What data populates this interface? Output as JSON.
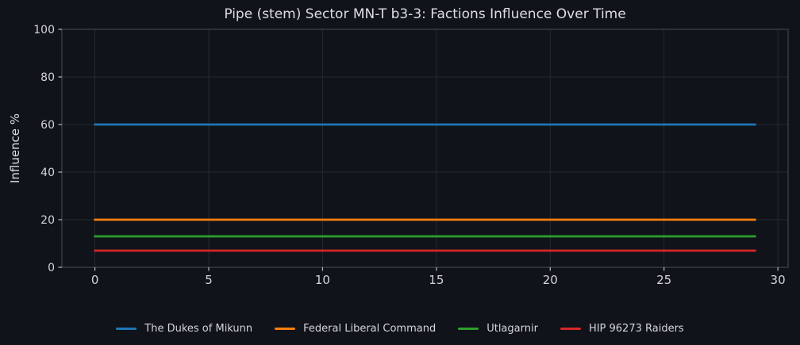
{
  "chart_data": {
    "type": "line",
    "title": "Pipe (stem) Sector MN-T b3-3: Factions Influence Over Time",
    "xlabel": "",
    "ylabel": "Influence %",
    "x": [
      0,
      1,
      2,
      3,
      4,
      5,
      6,
      7,
      8,
      9,
      10,
      11,
      12,
      13,
      14,
      15,
      16,
      17,
      18,
      19,
      20,
      21,
      22,
      23,
      24,
      25,
      26,
      27,
      28,
      29
    ],
    "series": [
      {
        "name": "The Dukes of Mikunn",
        "color": "#1f77b4",
        "values": [
          60,
          60,
          60,
          60,
          60,
          60,
          60,
          60,
          60,
          60,
          60,
          60,
          60,
          60,
          60,
          60,
          60,
          60,
          60,
          60,
          60,
          60,
          60,
          60,
          60,
          60,
          60,
          60,
          60,
          60
        ]
      },
      {
        "name": "Federal Liberal Command",
        "color": "#ff7f0e",
        "values": [
          20,
          20,
          20,
          20,
          20,
          20,
          20,
          20,
          20,
          20,
          20,
          20,
          20,
          20,
          20,
          20,
          20,
          20,
          20,
          20,
          20,
          20,
          20,
          20,
          20,
          20,
          20,
          20,
          20,
          20
        ]
      },
      {
        "name": "Utlagarnir",
        "color": "#2ca02c",
        "values": [
          13,
          13,
          13,
          13,
          13,
          13,
          13,
          13,
          13,
          13,
          13,
          13,
          13,
          13,
          13,
          13,
          13,
          13,
          13,
          13,
          13,
          13,
          13,
          13,
          13,
          13,
          13,
          13,
          13,
          13
        ]
      },
      {
        "name": "HIP 96273 Raiders",
        "color": "#d62728",
        "values": [
          7,
          7,
          7,
          7,
          7,
          7,
          7,
          7,
          7,
          7,
          7,
          7,
          7,
          7,
          7,
          7,
          7,
          7,
          7,
          7,
          7,
          7,
          7,
          7,
          7,
          7,
          7,
          7,
          7,
          7
        ]
      }
    ],
    "xticks": [
      0,
      5,
      10,
      15,
      20,
      25,
      30
    ],
    "yticks": [
      0,
      20,
      40,
      60,
      80,
      100
    ],
    "xlim": [
      -1.45,
      30.45
    ],
    "ylim": [
      0,
      100
    ],
    "grid": true,
    "legend_position": "bottom"
  },
  "theme": {
    "background": "#10131a",
    "text": "#dcdee2",
    "tick_text": "#d2d4d8",
    "tick_mark": "#b8babd",
    "grid": "#252930",
    "spine": "#3f444b"
  }
}
